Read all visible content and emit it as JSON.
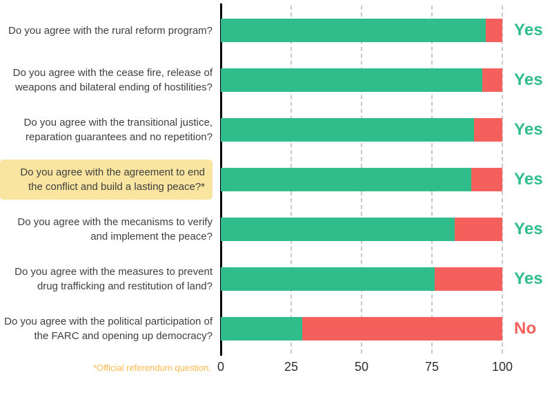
{
  "chart_data": {
    "type": "bar",
    "orientation": "horizontal",
    "stacked": true,
    "title": "",
    "xlabel": "",
    "ylabel": "",
    "xlim": [
      0,
      100
    ],
    "x_ticks": [
      "0",
      "25",
      "50",
      "75",
      "100"
    ],
    "gridlines_at": [
      25,
      50,
      75,
      100
    ],
    "grid_style": "dashed-vertical",
    "series_names": [
      "Yes",
      "No"
    ],
    "colors": {
      "yes": "#2EBD8B",
      "no": "#F5605D",
      "highlight_background": "#FAE5A0",
      "footnote": "#FFB84D",
      "grid": "#C8C8C8",
      "axis": "#000000",
      "text": "#3E3E3E"
    },
    "rows": [
      {
        "question": "Do you agree with the rural reform program?",
        "yes": 94,
        "no": 6,
        "result": "Yes",
        "highlighted": false
      },
      {
        "question": "Do you agree with the cease fire, release of weapons and bilateral ending of hostilities?",
        "yes": 93,
        "no": 7,
        "result": "Yes",
        "highlighted": false
      },
      {
        "question": "Do you agree with the transitional justice, reparation guarantees and no repetition?",
        "yes": 90,
        "no": 10,
        "result": "Yes",
        "highlighted": false
      },
      {
        "question": "Do you agree with the agreement to end the conflict and build a lasting peace?*",
        "yes": 89,
        "no": 11,
        "result": "Yes",
        "highlighted": true
      },
      {
        "question": "Do you agree with the mecanisms to verify and implement the peace?",
        "yes": 83,
        "no": 17,
        "result": "Yes",
        "highlighted": false
      },
      {
        "question": "Do you agree with the measures to prevent drug trafficking and restitution of land?",
        "yes": 76,
        "no": 24,
        "result": "Yes",
        "highlighted": false
      },
      {
        "question": "Do you agree with the political participation of the FARC and opening up democracy?",
        "yes": 29,
        "no": 71,
        "result": "No",
        "highlighted": false
      }
    ],
    "footnote": "*Official referendum question."
  }
}
